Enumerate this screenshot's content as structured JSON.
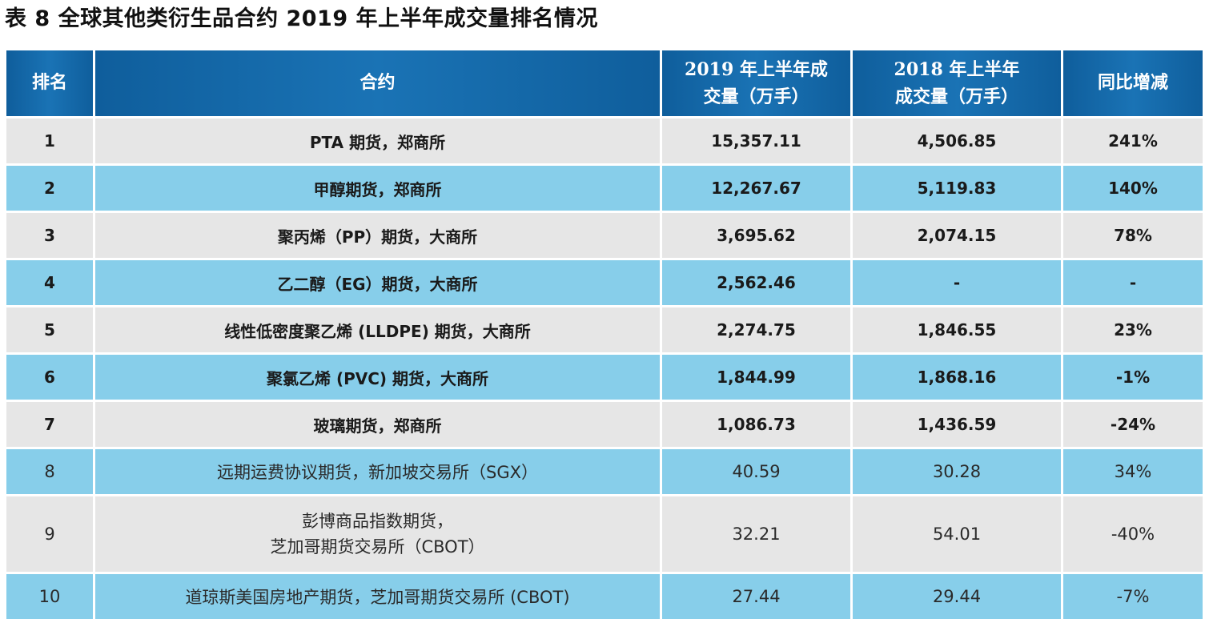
{
  "title": "表 8  全球其他类衍生品合约 2019 年上半年成交量排名情况",
  "table": {
    "headers": {
      "rank": "排名",
      "contract": "合约",
      "vol_2019_line1": "2019 年上半年成",
      "vol_2019_line2": "交量（万手）",
      "vol_2018_line1": "2018 年上半年",
      "vol_2018_line2": "成交量（万手）",
      "yoy": "同比增减"
    },
    "rows": [
      {
        "rank": "1",
        "contract": "PTA 期货，郑商所",
        "vol_2019": "15,357.11",
        "vol_2018": "4,506.85",
        "yoy": "241%"
      },
      {
        "rank": "2",
        "contract": "甲醇期货，郑商所",
        "vol_2019": "12,267.67",
        "vol_2018": "5,119.83",
        "yoy": "140%"
      },
      {
        "rank": "3",
        "contract": "聚丙烯（PP）期货，大商所",
        "vol_2019": "3,695.62",
        "vol_2018": "2,074.15",
        "yoy": "78%"
      },
      {
        "rank": "4",
        "contract": "乙二醇（EG）期货，大商所",
        "vol_2019": "2,562.46",
        "vol_2018": "-",
        "yoy": "-"
      },
      {
        "rank": "5",
        "contract": "线性低密度聚乙烯 (LLDPE) 期货，大商所",
        "vol_2019": "2,274.75",
        "vol_2018": "1,846.55",
        "yoy": "23%"
      },
      {
        "rank": "6",
        "contract": "聚氯乙烯 (PVC) 期货，大商所",
        "vol_2019": "1,844.99",
        "vol_2018": "1,868.16",
        "yoy": "-1%"
      },
      {
        "rank": "7",
        "contract": "玻璃期货，郑商所",
        "vol_2019": "1,086.73",
        "vol_2018": "1,436.59",
        "yoy": "-24%"
      },
      {
        "rank": "8",
        "contract": "远期运费协议期货，新加坡交易所（SGX）",
        "vol_2019": "40.59",
        "vol_2018": "30.28",
        "yoy": "34%"
      },
      {
        "rank": "9",
        "contract_line1": "彭博商品指数期货，",
        "contract_line2": "芝加哥期货交易所（CBOT）",
        "vol_2019": "32.21",
        "vol_2018": "54.01",
        "yoy": "-40%"
      },
      {
        "rank": "10",
        "contract": "道琼斯美国房地产期货，芝加哥期货交易所 (CBOT)",
        "vol_2019": "27.44",
        "vol_2018": "29.44",
        "yoy": "-7%"
      }
    ]
  },
  "colors": {
    "header_blue": "#1a73b5",
    "row_gray": "#e6e6e6",
    "row_light_blue": "#87ceea"
  }
}
